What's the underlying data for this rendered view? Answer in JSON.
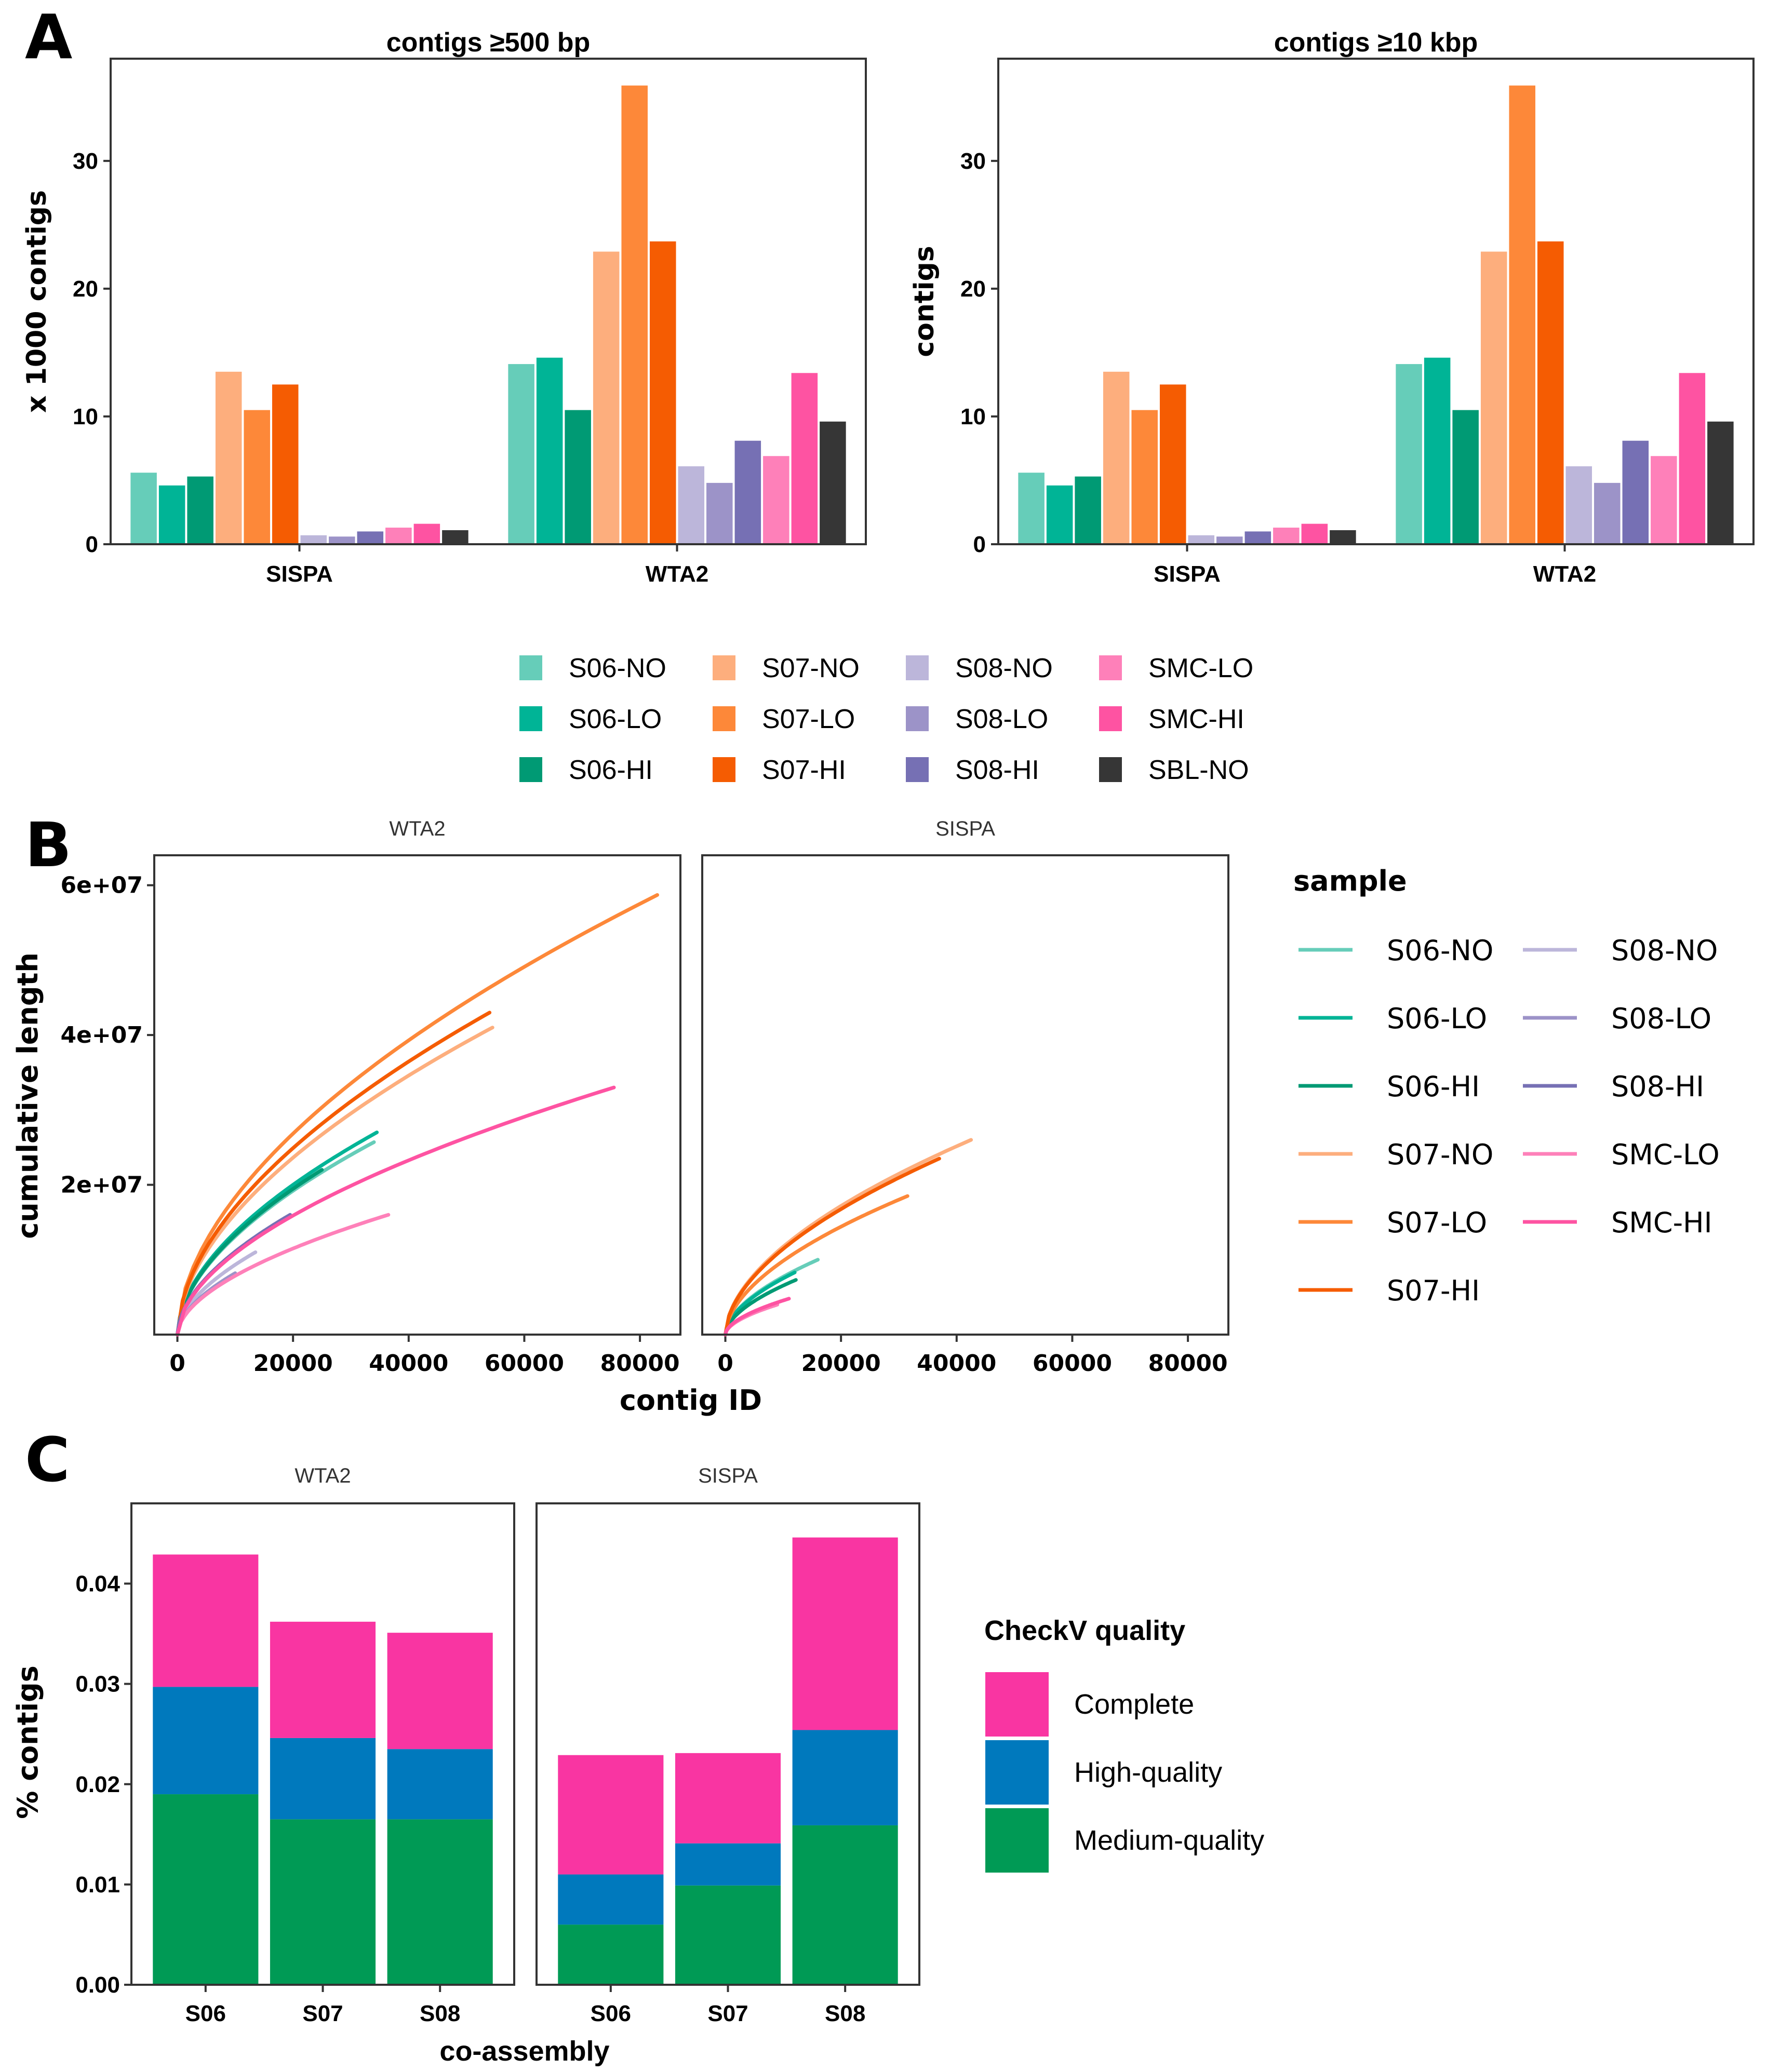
{
  "panel_labels": {
    "A": "A",
    "B": "B",
    "C": "C"
  },
  "sample_palette": {
    "S06-NO": "#66cdb9",
    "S06-LO": "#00b496",
    "S06-HI": "#009a74",
    "S07-NO": "#fdae7d",
    "S07-LO": "#fd8839",
    "S07-HI": "#f55c02",
    "S08-NO": "#bcb6da",
    "S08-LO": "#9c93c8",
    "S08-HI": "#7670b4",
    "SMC-LO": "#fe80b9",
    "SMC-HI": "#fe53a2",
    "SBL-NO": "#363636"
  },
  "chart_data": [
    {
      "id": "A1",
      "type": "bar",
      "title": "contigs ≥500 bp",
      "xlabel": "",
      "ylabel": "x 1000 contigs",
      "categories": [
        "SISPA",
        "WTA2"
      ],
      "ylim": [
        0,
        38
      ],
      "yticks": [
        0,
        10,
        20,
        30
      ],
      "grid": false,
      "series": [
        {
          "name": "S06-NO",
          "values": [
            5.6,
            14.1
          ]
        },
        {
          "name": "S06-LO",
          "values": [
            4.6,
            14.6
          ]
        },
        {
          "name": "S06-HI",
          "values": [
            5.3,
            10.5
          ]
        },
        {
          "name": "S07-NO",
          "values": [
            13.5,
            22.9
          ]
        },
        {
          "name": "S07-LO",
          "values": [
            10.5,
            35.9
          ]
        },
        {
          "name": "S07-HI",
          "values": [
            12.5,
            23.7
          ]
        },
        {
          "name": "S08-NO",
          "values": [
            0.7,
            6.1
          ]
        },
        {
          "name": "S08-LO",
          "values": [
            0.6,
            4.8
          ]
        },
        {
          "name": "S08-HI",
          "values": [
            1.0,
            8.1
          ]
        },
        {
          "name": "SMC-LO",
          "values": [
            1.3,
            6.9
          ]
        },
        {
          "name": "SMC-HI",
          "values": [
            1.6,
            13.4
          ]
        },
        {
          "name": "SBL-NO",
          "values": [
            1.1,
            9.6
          ]
        }
      ]
    },
    {
      "id": "A2",
      "type": "bar",
      "title": "contigs ≥10 kbp",
      "xlabel": "",
      "ylabel": "contigs",
      "categories": [
        "SISPA",
        "WTA2"
      ],
      "ylim": [
        0,
        38
      ],
      "yticks": [
        0,
        10,
        20,
        30
      ],
      "grid": false,
      "series": [
        {
          "name": "S06-NO",
          "values": [
            5.6,
            14.1
          ]
        },
        {
          "name": "S06-LO",
          "values": [
            4.6,
            14.6
          ]
        },
        {
          "name": "S06-HI",
          "values": [
            5.3,
            10.5
          ]
        },
        {
          "name": "S07-NO",
          "values": [
            13.5,
            22.9
          ]
        },
        {
          "name": "S07-LO",
          "values": [
            10.5,
            35.9
          ]
        },
        {
          "name": "S07-HI",
          "values": [
            12.5,
            23.7
          ]
        },
        {
          "name": "S08-NO",
          "values": [
            0.7,
            6.1
          ]
        },
        {
          "name": "S08-LO",
          "values": [
            0.6,
            4.8
          ]
        },
        {
          "name": "S08-HI",
          "values": [
            1.0,
            8.1
          ]
        },
        {
          "name": "SMC-LO",
          "values": [
            1.3,
            6.9
          ]
        },
        {
          "name": "SMC-HI",
          "values": [
            1.6,
            13.4
          ]
        },
        {
          "name": "SBL-NO",
          "values": [
            1.1,
            9.6
          ]
        }
      ],
      "legend": {
        "placement": "bottom",
        "entries": [
          "S06-NO",
          "S06-LO",
          "S06-HI",
          "S07-NO",
          "S07-LO",
          "S07-HI",
          "S08-NO",
          "S08-LO",
          "S08-HI",
          "SMC-LO",
          "SMC-HI",
          "SBL-NO"
        ]
      }
    },
    {
      "id": "B",
      "type": "line",
      "xlabel": "contig ID",
      "ylabel": "cumulative length",
      "xlim": [
        -4000,
        87000
      ],
      "ylim": [
        0,
        64000000
      ],
      "xticks": [
        0,
        20000,
        40000,
        60000,
        80000
      ],
      "xtick_labels": [
        "0",
        "20000",
        "40000",
        "60000",
        "80000"
      ],
      "yticks": [
        20000000,
        40000000,
        60000000
      ],
      "ytick_labels": [
        "2e+07",
        "4e+07",
        "6e+07"
      ],
      "facets": [
        {
          "title": "WTA2",
          "series": [
            {
              "name": "S06-NO",
              "end": [
                34000,
                25700000
              ]
            },
            {
              "name": "S06-LO",
              "end": [
                34500,
                27000000
              ]
            },
            {
              "name": "S06-HI",
              "end": [
                25000,
                22000000
              ]
            },
            {
              "name": "S07-NO",
              "end": [
                54500,
                41000000
              ]
            },
            {
              "name": "S07-LO",
              "end": [
                83000,
                58700000
              ]
            },
            {
              "name": "S07-HI",
              "end": [
                54000,
                43000000
              ]
            },
            {
              "name": "S08-NO",
              "end": [
                13500,
                11000000
              ]
            },
            {
              "name": "S08-LO",
              "end": [
                10000,
                8200000
              ]
            },
            {
              "name": "S08-HI",
              "end": [
                19500,
                16000000
              ]
            },
            {
              "name": "SMC-LO",
              "end": [
                36500,
                16000000
              ]
            },
            {
              "name": "SMC-HI",
              "end": [
                75500,
                33000000
              ]
            }
          ]
        },
        {
          "title": "SISPA",
          "series": [
            {
              "name": "S06-NO",
              "end": [
                16000,
                10000000
              ]
            },
            {
              "name": "S06-LO",
              "end": [
                12000,
                8300000
              ]
            },
            {
              "name": "S06-HI",
              "end": [
                12200,
                7300000
              ]
            },
            {
              "name": "S07-NO",
              "end": [
                42500,
                26000000
              ]
            },
            {
              "name": "S07-LO",
              "end": [
                31500,
                18500000
              ]
            },
            {
              "name": "S07-HI",
              "end": [
                37000,
                23500000
              ]
            },
            {
              "name": "SMC-LO",
              "end": [
                9000,
                4000000
              ]
            },
            {
              "name": "SMC-HI",
              "end": [
                11000,
                4800000
              ]
            }
          ]
        }
      ],
      "legend": {
        "title": "sample",
        "placement": "right",
        "entries": [
          "S06-NO",
          "S06-LO",
          "S06-HI",
          "S07-NO",
          "S07-LO",
          "S07-HI",
          "S08-NO",
          "S08-LO",
          "S08-HI",
          "SMC-LO",
          "SMC-HI"
        ]
      }
    },
    {
      "id": "C",
      "type": "bar",
      "stacked": true,
      "xlabel": "co-assembly",
      "ylabel": "% contigs",
      "ylim": [
        0,
        0.048
      ],
      "yticks": [
        0,
        0.01,
        0.02,
        0.03,
        0.04
      ],
      "ytick_labels": [
        "0.00",
        "0.01",
        "0.02",
        "0.03",
        "0.04"
      ],
      "categories": [
        "S06",
        "S07",
        "S08"
      ],
      "facets": [
        {
          "title": "WTA2",
          "series": [
            {
              "name": "Medium-quality",
              "values": [
                0.019,
                0.0165,
                0.0165
              ]
            },
            {
              "name": "High-quality",
              "values": [
                0.0107,
                0.0081,
                0.007
              ]
            },
            {
              "name": "Complete",
              "values": [
                0.0132,
                0.0116,
                0.0116
              ]
            }
          ]
        },
        {
          "title": "SISPA",
          "series": [
            {
              "name": "Medium-quality",
              "values": [
                0.006,
                0.0099,
                0.0159
              ]
            },
            {
              "name": "High-quality",
              "values": [
                0.005,
                0.0042,
                0.0095
              ]
            },
            {
              "name": "Complete",
              "values": [
                0.0119,
                0.009,
                0.0192
              ]
            }
          ]
        }
      ],
      "legend": {
        "title": "CheckV quality",
        "placement": "right",
        "entries": [
          {
            "name": "Complete",
            "color": "#f935a2"
          },
          {
            "name": "High-quality",
            "color": "#0079bd"
          },
          {
            "name": "Medium-quality",
            "color": "#009a55"
          }
        ]
      }
    }
  ]
}
